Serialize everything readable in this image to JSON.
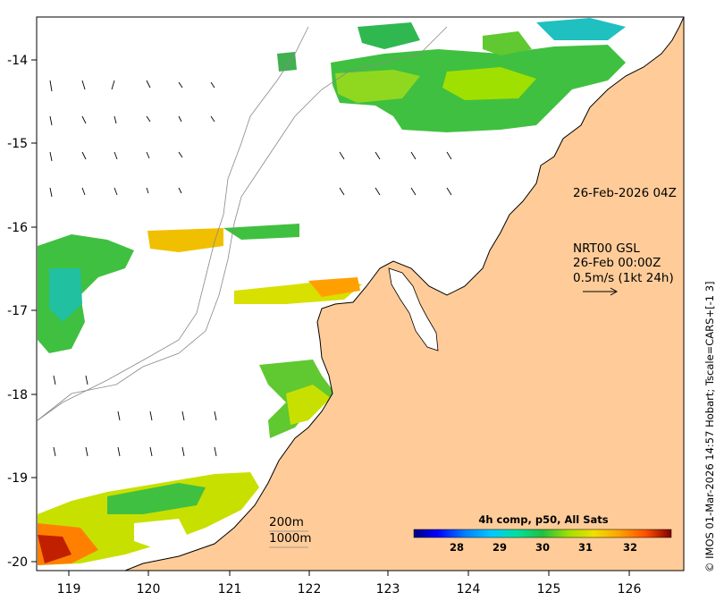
{
  "map": {
    "timestamp_label": "26-Feb-2026 04Z",
    "current_info": {
      "line1": "NRT00 GSL",
      "line2": "26-Feb 00:00Z",
      "line3": "0.5m/s (1kt 24h)"
    },
    "isobaths": {
      "label_200": "200m",
      "label_1000": "1000m"
    },
    "axes": {
      "lon_ticks": [
        "119",
        "120",
        "121",
        "122",
        "123",
        "124",
        "125",
        "126"
      ],
      "lat_ticks": [
        "-14",
        "-15",
        "-16",
        "-17",
        "-18",
        "-19",
        "-20"
      ]
    },
    "colorbar": {
      "title": "4h comp, p50, All Sats",
      "ticks": [
        "28",
        "29",
        "30",
        "31",
        "32"
      ],
      "range": [
        27,
        33
      ],
      "colors": [
        "#00007f",
        "#0000ff",
        "#0080ff",
        "#00c8ff",
        "#00e0a0",
        "#20c040",
        "#80dc20",
        "#e8e800",
        "#ffb000",
        "#ff6000",
        "#d02000",
        "#800000"
      ]
    },
    "credit": "© IMOS 01-Mar-2026 14:57 Hobart; Tscale=CARS+[-1 3]",
    "colors": {
      "land": "#ffcc99",
      "ocean": "#ffffff",
      "frame": "#000000",
      "isobath_line": "#888888"
    }
  }
}
